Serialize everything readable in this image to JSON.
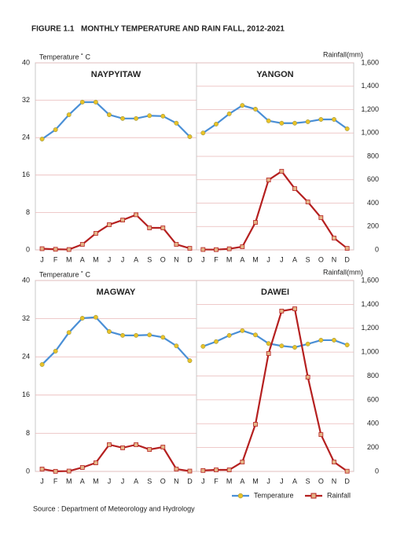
{
  "figure_label": "FIGURE 1.1",
  "title": "MONTHLY TEMPERATURE AND RAIN FALL, 2012-2021",
  "source": "Source : Department  of Meteorology and Hydrology",
  "chart_data": [
    {
      "type": "line",
      "title": "NAYPYITAW",
      "ylabel": "Temperature ˚ C",
      "categories": [
        "J",
        "F",
        "M",
        "A",
        "M",
        "J",
        "J",
        "A",
        "S",
        "O",
        "N",
        "D"
      ],
      "ylim": [
        0,
        40
      ],
      "yticks": [
        0,
        8,
        16,
        24,
        32,
        40
      ],
      "y2lim": [
        0,
        1600
      ],
      "grid": true,
      "series": [
        {
          "name": "Temperature",
          "color": "#4a8fd6",
          "marker_color": "#e8c229",
          "values": [
            23.7,
            25.7,
            28.9,
            31.6,
            31.6,
            28.9,
            28.1,
            28.1,
            28.7,
            28.6,
            27.1,
            24.2
          ]
        },
        {
          "name": "Rainfall",
          "color": "#b52020",
          "marker_color": "#e4b487",
          "axis": "y2",
          "values": [
            10,
            5,
            3,
            47,
            141,
            215,
            255,
            300,
            188,
            188,
            47,
            13
          ]
        }
      ]
    },
    {
      "type": "line",
      "title": "YANGON",
      "y2label": "Rainfall(mm)",
      "categories": [
        "J",
        "F",
        "M",
        "A",
        "M",
        "J",
        "J",
        "A",
        "S",
        "O",
        "N",
        "D"
      ],
      "ylim": [
        0,
        40
      ],
      "y2lim": [
        0,
        1600
      ],
      "grid": true,
      "y2ticks": [
        0,
        200,
        400,
        600,
        800,
        {
          "value": 1000,
          "label": "1,000"
        },
        {
          "value": 1200,
          "label": "1,200"
        },
        {
          "value": 1400,
          "label": "1,400"
        },
        {
          "value": 1600,
          "label": "1,600"
        }
      ],
      "series": [
        {
          "name": "Temperature",
          "color": "#4a8fd6",
          "marker_color": "#e8c229",
          "values": [
            25.0,
            26.9,
            29.1,
            30.9,
            30.1,
            27.6,
            27.1,
            27.1,
            27.4,
            27.9,
            27.9,
            25.9
          ]
        },
        {
          "name": "Rainfall",
          "color": "#b52020",
          "marker_color": "#e4b487",
          "axis": "y2",
          "values": [
            3,
            2,
            9,
            27,
            235,
            598,
            672,
            524,
            410,
            276,
            101,
            13
          ]
        }
      ]
    },
    {
      "type": "line",
      "title": "MAGWAY",
      "ylabel": "Temperature ˚ C",
      "categories": [
        "J",
        "F",
        "M",
        "A",
        "M",
        "J",
        "J",
        "A",
        "S",
        "O",
        "N",
        "D"
      ],
      "ylim": [
        0,
        40
      ],
      "yticks": [
        0,
        8,
        16,
        24,
        32,
        40
      ],
      "y2lim": [
        0,
        1600
      ],
      "grid": true,
      "series": [
        {
          "name": "Temperature",
          "color": "#4a8fd6",
          "marker_color": "#e8c229",
          "values": [
            22.4,
            25.2,
            29.1,
            32.1,
            32.3,
            29.3,
            28.5,
            28.5,
            28.6,
            28.1,
            26.3,
            23.2
          ]
        },
        {
          "name": "Rainfall",
          "color": "#b52020",
          "marker_color": "#e4b487",
          "axis": "y2",
          "values": [
            20,
            1,
            3,
            33,
            72,
            224,
            198,
            224,
            184,
            204,
            20,
            3
          ]
        }
      ]
    },
    {
      "type": "line",
      "title": "DAWEI",
      "y2label": "Rainfall(mm)",
      "categories": [
        "J",
        "F",
        "M",
        "A",
        "M",
        "J",
        "J",
        "A",
        "S",
        "O",
        "N",
        "D"
      ],
      "ylim": [
        0,
        40
      ],
      "y2lim": [
        0,
        1600
      ],
      "grid": true,
      "y2ticks": [
        0,
        200,
        400,
        600,
        800,
        {
          "value": 1000,
          "label": "1,000"
        },
        {
          "value": 1200,
          "label": "1,200"
        },
        {
          "value": 1400,
          "label": "1,400"
        },
        {
          "value": 1600,
          "label": "1,600"
        }
      ],
      "series": [
        {
          "name": "Temperature",
          "color": "#4a8fd6",
          "marker_color": "#e8c229",
          "values": [
            26.2,
            27.2,
            28.5,
            29.5,
            28.6,
            26.8,
            26.3,
            26.0,
            26.7,
            27.5,
            27.5,
            26.5
          ]
        },
        {
          "name": "Rainfall",
          "color": "#b52020",
          "marker_color": "#e4b487",
          "axis": "y2",
          "values": [
            8,
            13,
            13,
            79,
            395,
            988,
            1344,
            1363,
            790,
            309,
            79,
            2
          ]
        }
      ]
    }
  ]
}
